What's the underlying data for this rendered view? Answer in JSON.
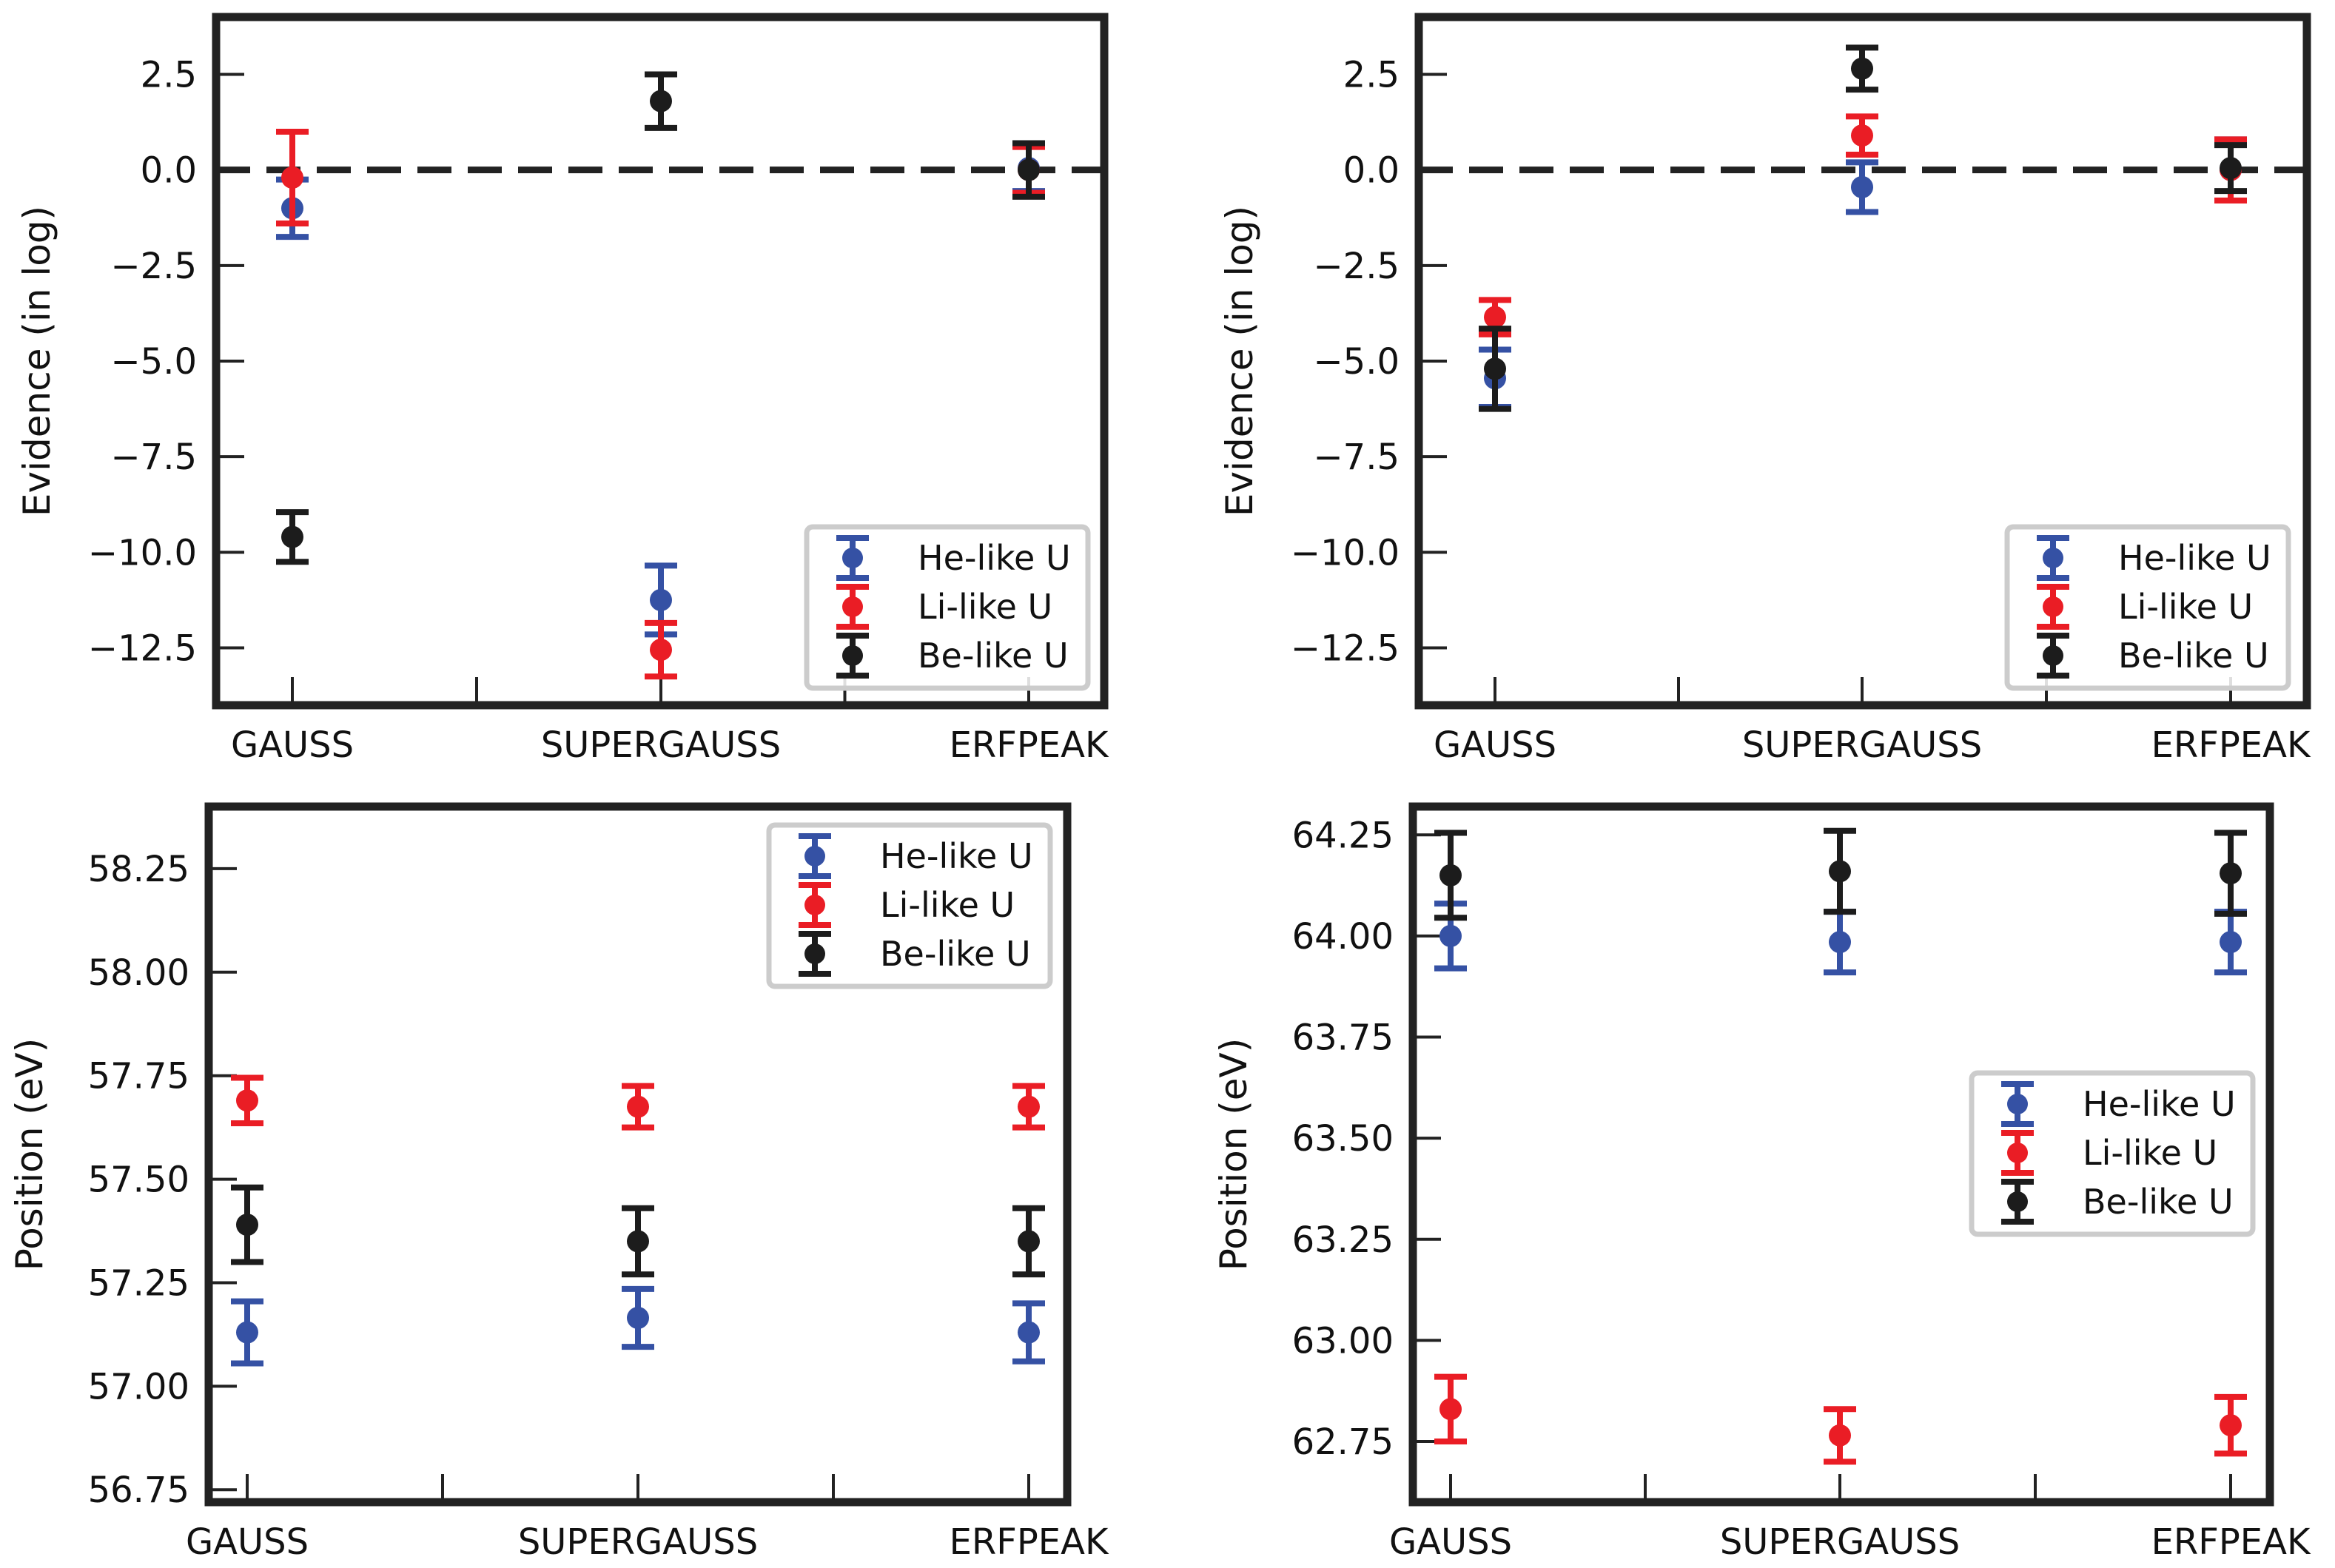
{
  "legend_entries": [
    {
      "name": "He-like U",
      "color": "#3551a4"
    },
    {
      "name": "Li-like U",
      "color": "#ea1d25"
    },
    {
      "name": "Be-like U",
      "color": "#1c1c1c"
    }
  ],
  "chart_data": [
    {
      "type": "scatter",
      "panel": "top-left",
      "categories": [
        "GAUSS",
        "SUPERGAUSS",
        "ERFPEAK"
      ],
      "ylabel": "Evidence (in log)",
      "xlabel": "",
      "ylim": [
        -14.0,
        4.0
      ],
      "yticks": [
        2.5,
        0.0,
        -2.5,
        -5.0,
        -7.5,
        -10.0,
        -12.5
      ],
      "ytick_labels": [
        "2.5",
        "0.0",
        "−2.5",
        "−5.0",
        "−7.5",
        "−10.0",
        "−12.5"
      ],
      "reference_line": 0.0,
      "grid": false,
      "legend_position": "lower right",
      "series": [
        {
          "name": "He-like U",
          "color": "#3551a4",
          "values": [
            -1.0,
            -11.25,
            0.05
          ],
          "errors": [
            0.75,
            0.9,
            0.6
          ]
        },
        {
          "name": "Li-like U",
          "color": "#ea1d25",
          "values": [
            -0.2,
            -12.55,
            0.0
          ],
          "errors": [
            1.2,
            0.7,
            0.6
          ]
        },
        {
          "name": "Be-like U",
          "color": "#1c1c1c",
          "values": [
            -9.6,
            1.8,
            0.0
          ],
          "errors": [
            0.65,
            0.7,
            0.7
          ]
        }
      ]
    },
    {
      "type": "scatter",
      "panel": "top-right",
      "categories": [
        "GAUSS",
        "SUPERGAUSS",
        "ERFPEAK"
      ],
      "ylabel": "Evidence (in log)",
      "xlabel": "",
      "ylim": [
        -14.0,
        4.0
      ],
      "yticks": [
        2.5,
        0.0,
        -2.5,
        -5.0,
        -7.5,
        -10.0,
        -12.5
      ],
      "ytick_labels": [
        "2.5",
        "0.0",
        "−2.5",
        "−5.0",
        "−7.5",
        "−10.0",
        "−12.5"
      ],
      "reference_line": 0.0,
      "grid": false,
      "legend_position": "lower right",
      "series": [
        {
          "name": "He-like U",
          "color": "#3551a4",
          "values": [
            -5.45,
            -0.45,
            0.0
          ],
          "errors": [
            0.75,
            0.65,
            0.8
          ]
        },
        {
          "name": "Li-like U",
          "color": "#ea1d25",
          "values": [
            -3.85,
            0.9,
            0.0
          ],
          "errors": [
            0.45,
            0.5,
            0.8
          ]
        },
        {
          "name": "Be-like U",
          "color": "#1c1c1c",
          "values": [
            -5.2,
            2.65,
            0.05
          ],
          "errors": [
            1.05,
            0.55,
            0.6
          ]
        }
      ]
    },
    {
      "type": "scatter",
      "panel": "bottom-left",
      "categories": [
        "GAUSS",
        "SUPERGAUSS",
        "ERFPEAK"
      ],
      "ylabel": "Position (eV)",
      "xlabel": "",
      "ylim": [
        56.72,
        58.4
      ],
      "yticks": [
        58.25,
        58.0,
        57.75,
        57.5,
        57.25,
        57.0,
        56.75
      ],
      "ytick_labels": [
        "58.25",
        "58.00",
        "57.75",
        "57.50",
        "57.25",
        "57.00",
        "56.75"
      ],
      "grid": false,
      "legend_position": "upper right",
      "series": [
        {
          "name": "He-like U",
          "color": "#3551a4",
          "values": [
            57.13,
            57.165,
            57.13
          ],
          "errors": [
            0.075,
            0.07,
            0.07
          ]
        },
        {
          "name": "Li-like U",
          "color": "#ea1d25",
          "values": [
            57.69,
            57.675,
            57.675
          ],
          "errors": [
            0.055,
            0.05,
            0.05
          ]
        },
        {
          "name": "Be-like U",
          "color": "#1c1c1c",
          "values": [
            57.39,
            57.35,
            57.35
          ],
          "errors": [
            0.09,
            0.08,
            0.08
          ]
        }
      ]
    },
    {
      "type": "scatter",
      "panel": "bottom-right",
      "categories": [
        "GAUSS",
        "SUPERGAUSS",
        "ERFPEAK"
      ],
      "ylabel": "Position (eV)",
      "xlabel": "",
      "ylim": [
        62.6,
        64.32
      ],
      "yticks": [
        64.25,
        64.0,
        63.75,
        63.5,
        63.25,
        63.0,
        62.75
      ],
      "ytick_labels": [
        "64.25",
        "64.00",
        "63.75",
        "63.50",
        "63.25",
        "63.00",
        "62.75"
      ],
      "grid": false,
      "legend_position": "center right",
      "series": [
        {
          "name": "He-like U",
          "color": "#3551a4",
          "values": [
            64.0,
            63.985,
            63.985
          ],
          "errors": [
            0.08,
            0.075,
            0.075
          ]
        },
        {
          "name": "Li-like U",
          "color": "#ea1d25",
          "values": [
            62.83,
            62.765,
            62.79
          ],
          "errors": [
            0.08,
            0.065,
            0.07
          ]
        },
        {
          "name": "Be-like U",
          "color": "#1c1c1c",
          "values": [
            64.15,
            64.16,
            64.155
          ],
          "errors": [
            0.105,
            0.1,
            0.1
          ]
        }
      ]
    }
  ]
}
